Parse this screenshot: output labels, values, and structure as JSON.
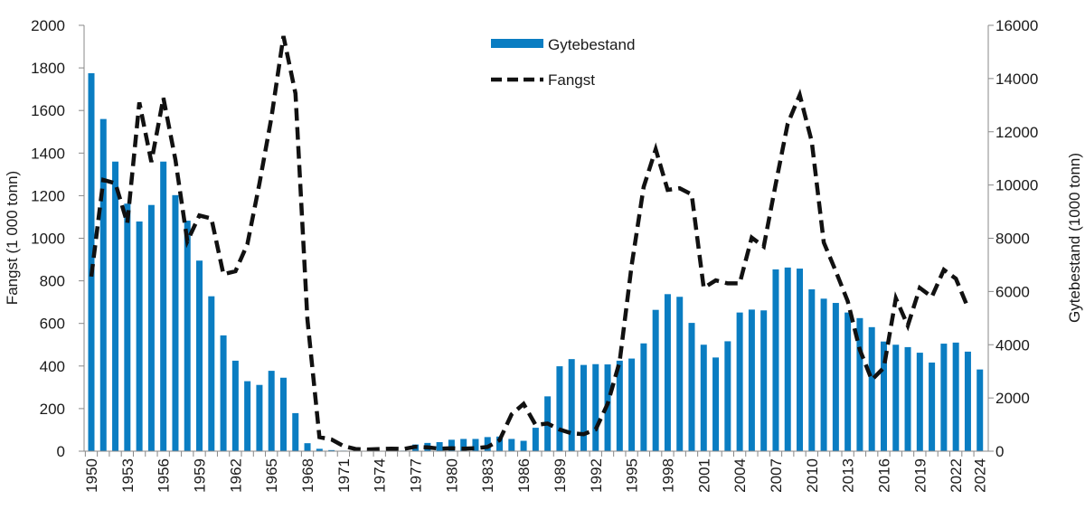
{
  "chart_data": {
    "type": "bar+line",
    "title": "",
    "y_left_label": "Fangst (1 000 tonn)",
    "y_right_label": "Gytebestand (1000 tonn)",
    "y_left_lim": [
      0,
      2000
    ],
    "y_left_ticks": [
      0,
      200,
      400,
      600,
      800,
      1000,
      1200,
      1400,
      1600,
      1800,
      2000
    ],
    "y_right_lim": [
      0,
      16000
    ],
    "y_right_ticks": [
      0,
      2000,
      4000,
      6000,
      8000,
      10000,
      12000,
      14000,
      16000
    ],
    "x_tick_labels": [
      "1950",
      "1953",
      "1956",
      "1959",
      "1962",
      "1965",
      "1968",
      "1971",
      "1974",
      "1977",
      "1980",
      "1983",
      "1986",
      "1989",
      "1992",
      "1995",
      "1998",
      "2001",
      "2004",
      "2007",
      "2010",
      "2013",
      "2016",
      "2019",
      "2022",
      "2024"
    ],
    "grid": false,
    "legend_position": "top-center",
    "years": [
      1950,
      1951,
      1952,
      1953,
      1954,
      1955,
      1956,
      1957,
      1958,
      1959,
      1960,
      1961,
      1962,
      1963,
      1964,
      1965,
      1966,
      1967,
      1968,
      1969,
      1970,
      1971,
      1972,
      1973,
      1974,
      1975,
      1976,
      1977,
      1978,
      1979,
      1980,
      1981,
      1982,
      1983,
      1984,
      1985,
      1986,
      1987,
      1988,
      1989,
      1990,
      1991,
      1992,
      1993,
      1994,
      1995,
      1996,
      1997,
      1998,
      1999,
      2000,
      2001,
      2002,
      2003,
      2004,
      2005,
      2006,
      2007,
      2008,
      2009,
      2010,
      2011,
      2012,
      2013,
      2014,
      2015,
      2016,
      2017,
      2018,
      2019,
      2020,
      2021,
      2022,
      2023,
      2024
    ],
    "series": [
      {
        "name": "Gytebestand",
        "type": "bar",
        "axis": "right",
        "color": "#0a7dc2",
        "values": [
          14200,
          12480,
          10880,
          9300,
          8630,
          9250,
          10880,
          9620,
          8660,
          7160,
          5820,
          4350,
          3400,
          2630,
          2490,
          3020,
          2760,
          1430,
          300,
          90,
          40,
          20,
          10,
          10,
          10,
          40,
          20,
          250,
          310,
          340,
          430,
          460,
          460,
          530,
          550,
          460,
          390,
          880,
          2060,
          3190,
          3460,
          3240,
          3270,
          3260,
          3400,
          3480,
          4050,
          5310,
          5900,
          5800,
          4820,
          4000,
          3520,
          4130,
          5210,
          5320,
          5290,
          6830,
          6900,
          6860,
          6080,
          5730,
          5570,
          5210,
          5000,
          4660,
          4120,
          4000,
          3910,
          3700,
          3330,
          4040,
          4080,
          3740,
          3070
        ]
      },
      {
        "name": "Fangst",
        "type": "line",
        "style": "dashed",
        "axis": "left",
        "color": "#111111",
        "values": [
          820,
          1274,
          1258,
          1071,
          1638,
          1358,
          1659,
          1369,
          986,
          1107,
          1093,
          831,
          845,
          972,
          1256,
          1567,
          1949,
          1680,
          619,
          66,
          55,
          24,
          10,
          8,
          10,
          12,
          10,
          21,
          18,
          12,
          14,
          12,
          14,
          20,
          52,
          173,
          222,
          123,
          130,
          102,
          84,
          80,
          102,
          222,
          420,
          873,
          1241,
          1418,
          1227,
          1235,
          1206,
          767,
          802,
          788,
          788,
          1003,
          961,
          1256,
          1538,
          1673,
          1454,
          980,
          845,
          704,
          477,
          335,
          392,
          718,
          590,
          767,
          725,
          852,
          810,
          675,
          null
        ]
      }
    ]
  }
}
